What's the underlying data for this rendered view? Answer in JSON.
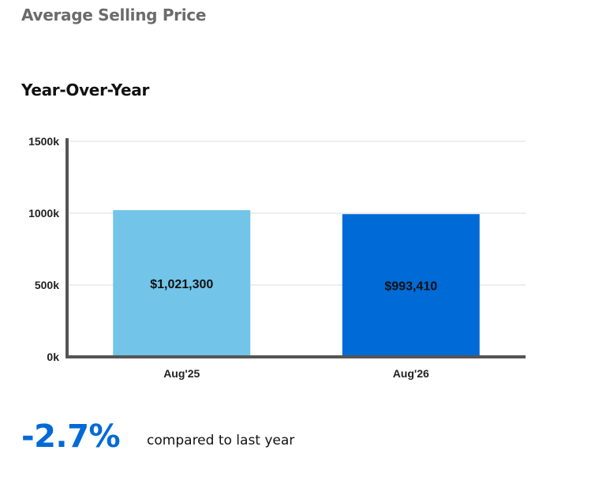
{
  "page": {
    "title": "Average Selling Price",
    "section_title": "Year-Over-Year"
  },
  "chart_data": {
    "type": "bar",
    "categories": [
      "Aug'25",
      "Aug'26"
    ],
    "values": [
      1021300,
      993410
    ],
    "data_labels": [
      "$1,021,300",
      "$993,410"
    ],
    "bar_colors": [
      "#72c4e9",
      "#006ad6"
    ],
    "yticks": [
      0,
      500000,
      1000000,
      1500000
    ],
    "ytick_labels": [
      "0k",
      "500k",
      "1000k",
      "1500k"
    ],
    "ylim": [
      0,
      1500000
    ],
    "grid": true,
    "title": "",
    "xlabel": "",
    "ylabel": ""
  },
  "summary": {
    "change": "-2.7%",
    "caption": "compared to last year",
    "accent_color": "#006ad6"
  }
}
